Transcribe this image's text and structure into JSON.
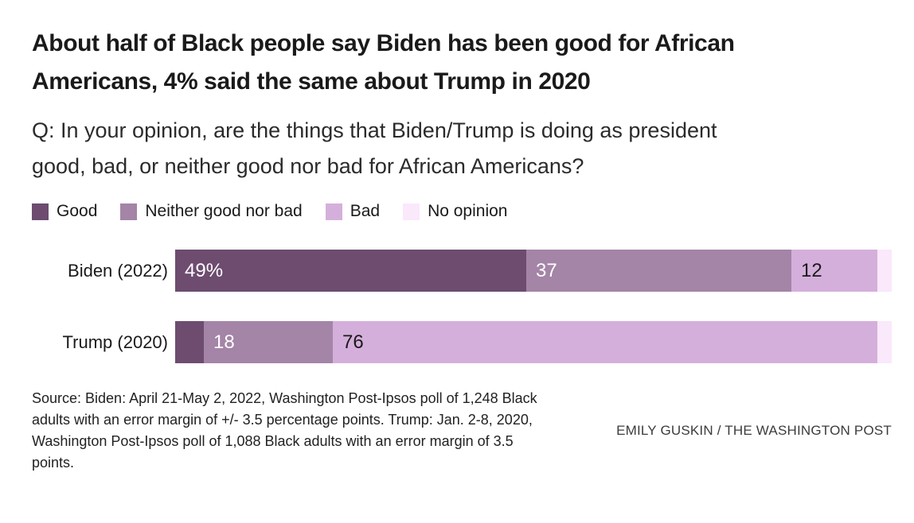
{
  "title": "About half of Black people say Biden has been good for African Americans, 4% said the same about Trump in 2020",
  "question": "Q: In your opinion, are the things that Biden/Trump is doing as president good, bad, or neither good nor bad for African Americans?",
  "legend": [
    {
      "label": "Good",
      "color": "#6d4c70"
    },
    {
      "label": "Neither good nor bad",
      "color": "#a484a7"
    },
    {
      "label": "Bad",
      "color": "#d5afdb"
    },
    {
      "label": "No opinion",
      "color": "#fae8fb"
    }
  ],
  "chart_data": {
    "type": "bar",
    "orientation": "horizontal",
    "stacked": true,
    "units": "percent",
    "xlim": [
      0,
      100
    ],
    "grid": false,
    "legend_position": "top",
    "categories": [
      "Biden (2022)",
      "Trump (2020)"
    ],
    "series": [
      {
        "name": "Good",
        "color": "#6d4c70",
        "values": [
          49,
          4
        ]
      },
      {
        "name": "Neither good nor bad",
        "color": "#a484a7",
        "values": [
          37,
          18
        ]
      },
      {
        "name": "Bad",
        "color": "#d5afdb",
        "values": [
          12,
          76
        ]
      },
      {
        "name": "No opinion",
        "color": "#fae8fb",
        "values": [
          2,
          2
        ]
      }
    ],
    "bar_labels": [
      [
        "49%",
        "37",
        "12",
        ""
      ],
      [
        "",
        "18",
        "76",
        ""
      ]
    ],
    "label_colors": [
      "#ffffff",
      "#ffffff",
      "#1a1a1a",
      "#1a1a1a"
    ]
  },
  "source_note": "Source: Biden: April 21-May 2, 2022, Washington Post-Ipsos poll of 1,248 Black adults with an error margin of +/- 3.5 percentage points. Trump: Jan. 2-8, 2020, Washington Post-Ipsos poll of 1,088 Black adults with an error margin of 3.5 points.",
  "credit": "EMILY GUSKIN / THE WASHINGTON POST"
}
